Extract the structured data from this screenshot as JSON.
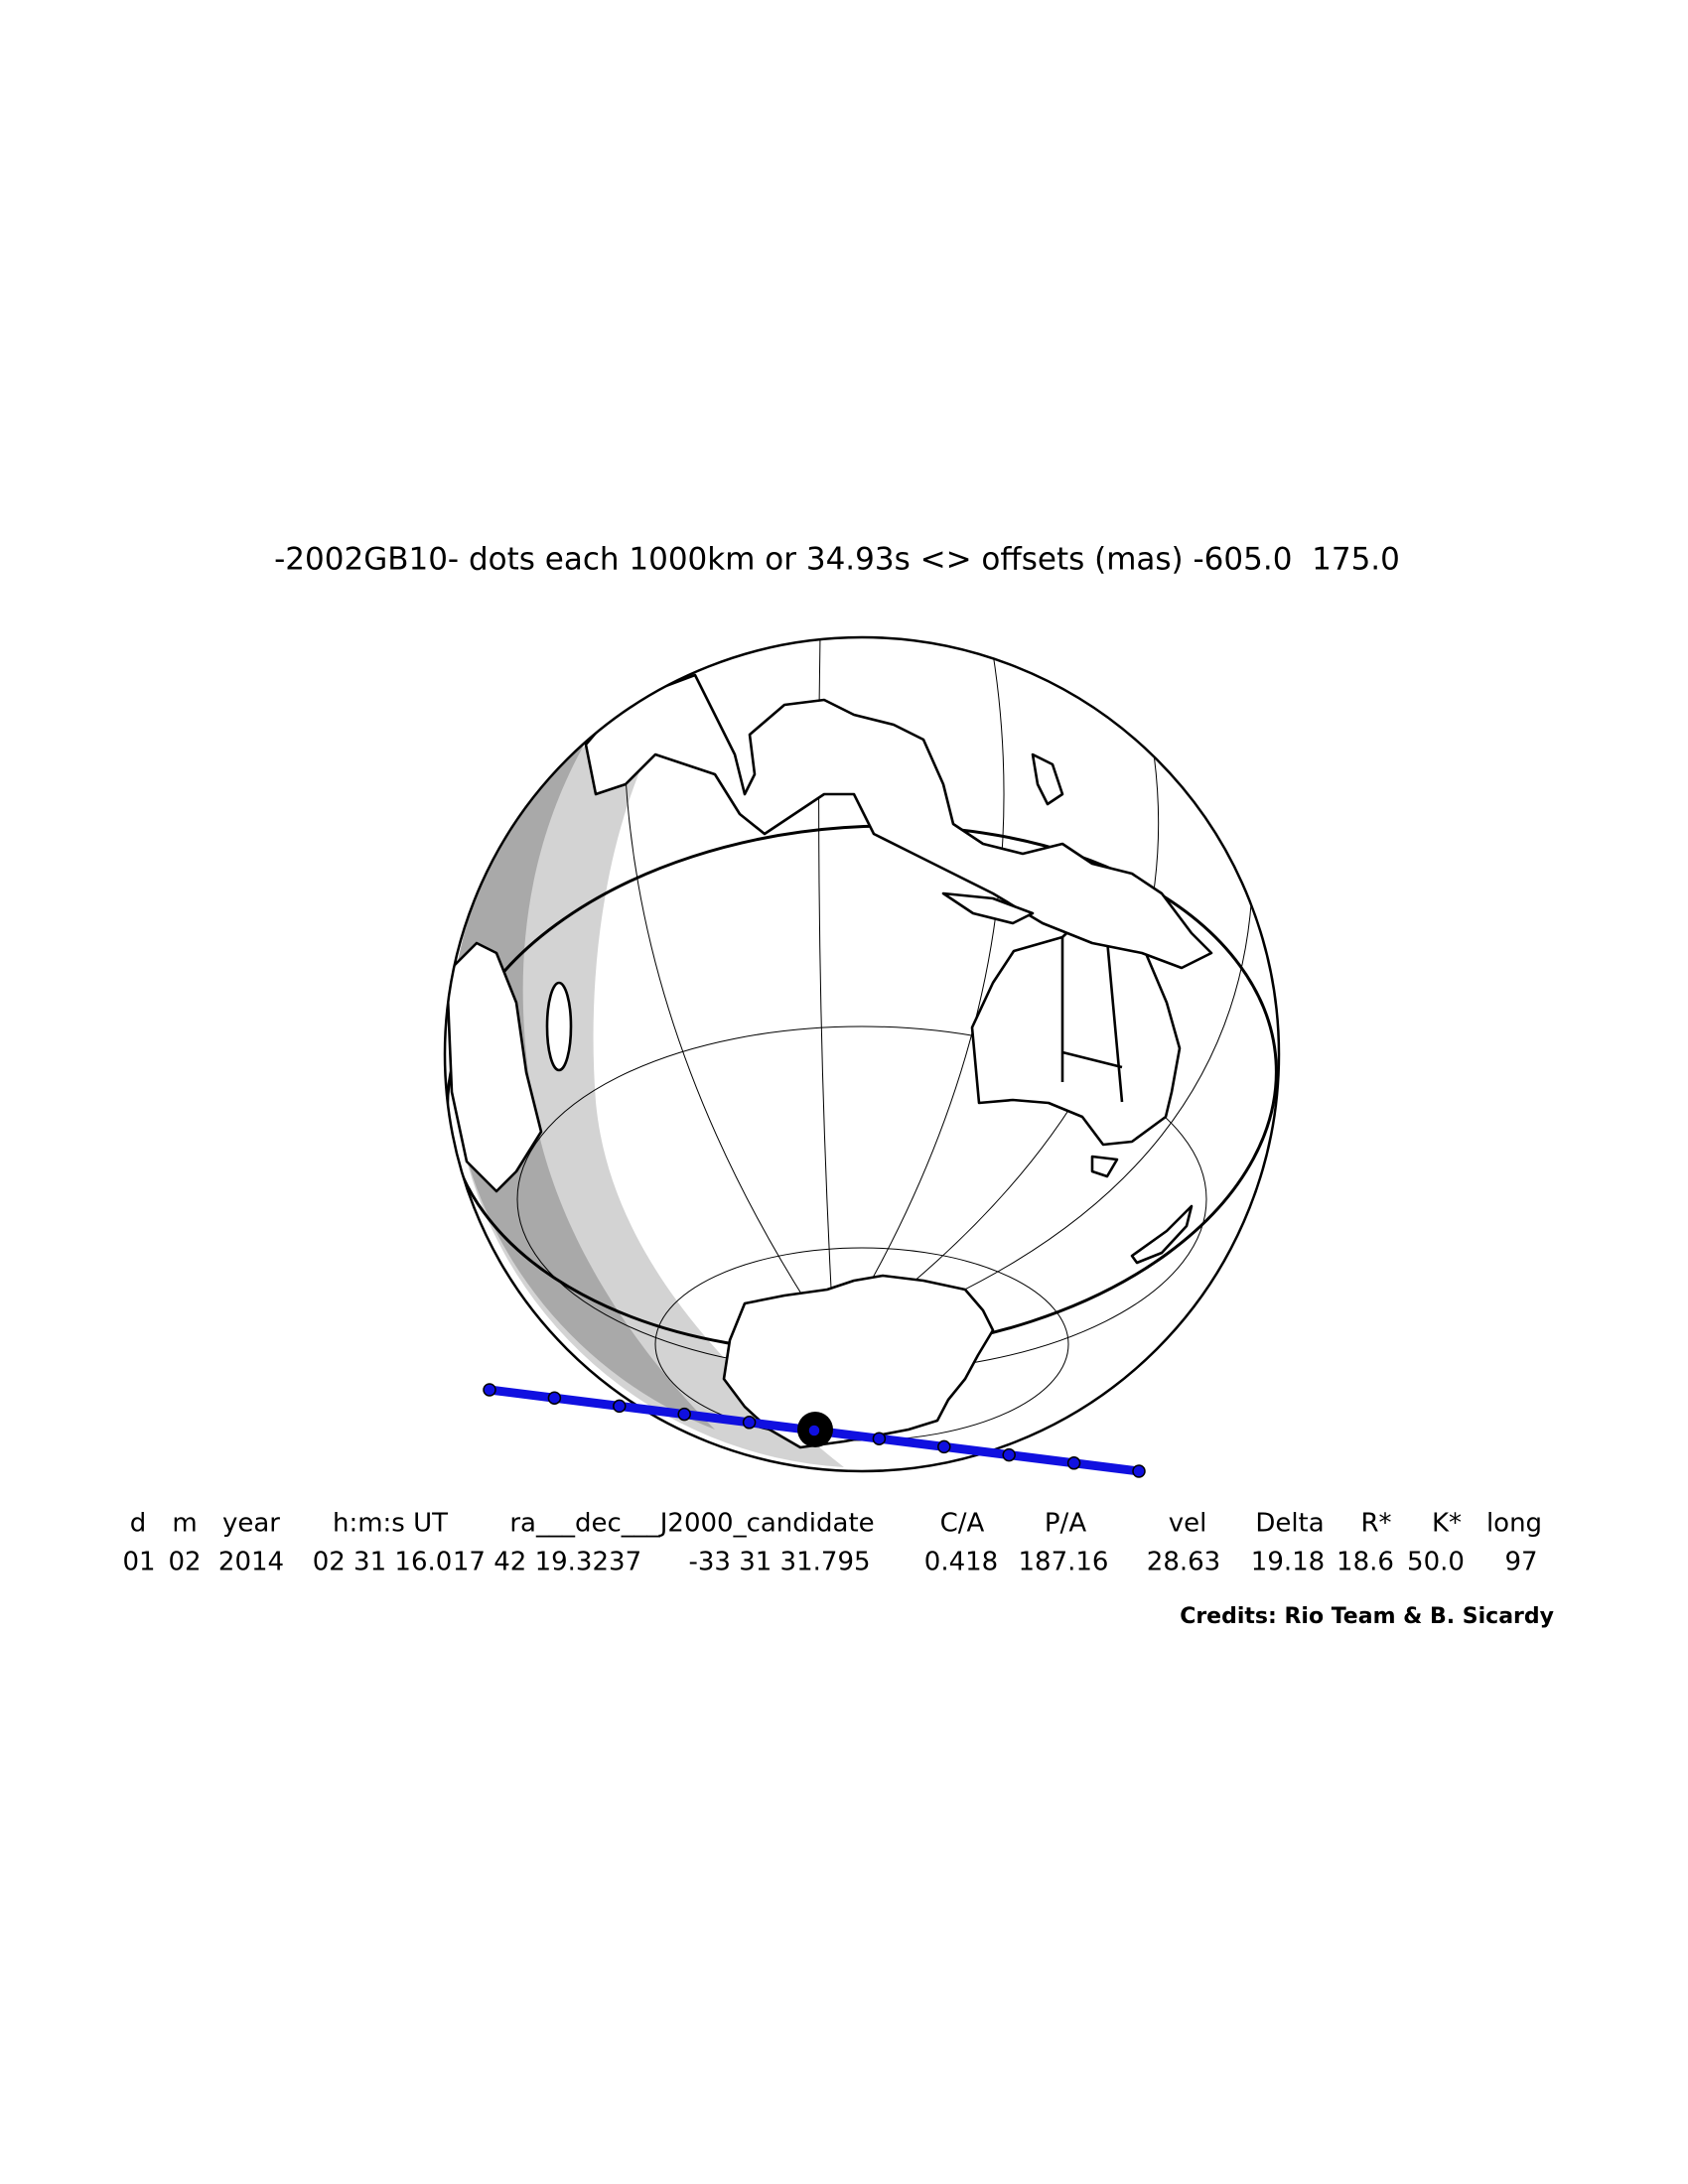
{
  "title": "-2002GB10- dots each 1000km or 34.93s <> offsets (mas) -605.0  175.0",
  "table": {
    "headers": [
      "d",
      "m",
      "year",
      "h:m:s UT",
      "ra___dec___J2000_candidate",
      "C/A",
      "P/A",
      "vel",
      "Delta",
      "R*",
      "K*",
      "long"
    ],
    "values": [
      "01",
      "02",
      "2014",
      "02 31 16.0",
      "17 42 19.3237",
      "-33 31 31.795",
      "0.418",
      "187.16",
      "28.63",
      "19.18",
      "18.6",
      "50.0",
      "97"
    ]
  },
  "credits": "Credits: Rio Team & B. Sicardy"
}
